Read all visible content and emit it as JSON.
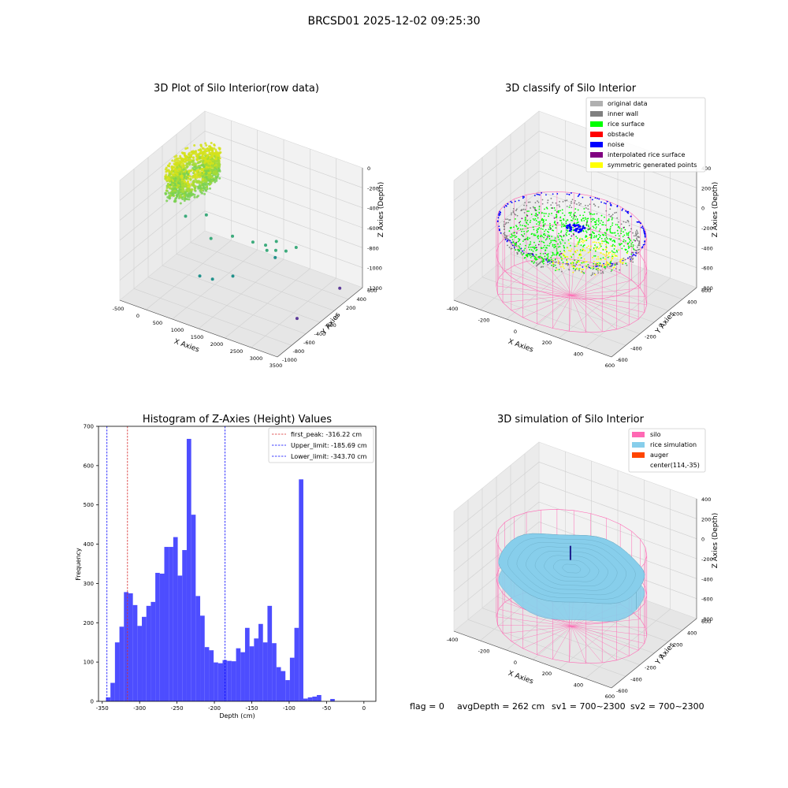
{
  "suptitle": "BRCSD01 2025-12-02 09:25:30",
  "footer": {
    "flag": "flag = 0",
    "avg_depth": "avgDepth = 262 cm",
    "sv1": "sv1 = 700~2300",
    "sv2": "sv2 = 700~2300"
  },
  "colors": {
    "bar": "#4d4dff",
    "first_peak": "#d62728",
    "limits": "#0000ff",
    "silo": "#ff69b4",
    "rice_sim": "#87ceeb",
    "auger": "#ff4500",
    "original": "#b0b0b0",
    "inner_wall": "#808080",
    "rice_surface": "#00ff00",
    "obstacle": "#ff0000",
    "noise": "#0000ff",
    "interp": "#800080",
    "symmetric": "#ffff00"
  },
  "chart_data": [
    {
      "type": "scatter",
      "title": "3D Plot of Silo Interior(row data)",
      "xlabel": "X Axies",
      "ylabel": "Y Axies",
      "zlabel": "Z Axies (Depth)",
      "x_ticks": [
        "-500",
        "0",
        "500",
        "1000",
        "1500",
        "2000",
        "2500",
        "3000",
        "3500"
      ],
      "y_ticks": [
        "-1000",
        "-800",
        "-600",
        "-400",
        "-200",
        "0",
        "200",
        "400",
        "600"
      ],
      "z_ticks": [
        "-1200",
        "-1000",
        "-800",
        "-600",
        "-400",
        "-200",
        "0"
      ],
      "xlim": [
        -600,
        3500
      ],
      "ylim": [
        -1000,
        700
      ],
      "zlim": [
        -1250,
        100
      ],
      "cluster": {
        "x_range": [
          -450,
          450
        ],
        "y_range": [
          -450,
          450
        ],
        "z_range": [
          -350,
          -30
        ]
      },
      "outliers": [
        {
          "x": 200,
          "y": -300,
          "z": -500
        },
        {
          "x": 350,
          "y": 0,
          "z": -600
        },
        {
          "x": 600,
          "y": -100,
          "z": -780
        },
        {
          "x": 900,
          "y": 100,
          "z": -800
        },
        {
          "x": 1300,
          "y": 200,
          "z": -850
        },
        {
          "x": 1500,
          "y": 300,
          "z": -900
        },
        {
          "x": 1600,
          "y": 250,
          "z": -920
        },
        {
          "x": 1650,
          "y": 400,
          "z": -880
        },
        {
          "x": 1700,
          "y": 350,
          "z": -950
        },
        {
          "x": 1750,
          "y": 300,
          "z": -1000
        },
        {
          "x": 1900,
          "y": 400,
          "z": -950
        },
        {
          "x": 2100,
          "y": 450,
          "z": -900
        },
        {
          "x": 700,
          "y": -400,
          "z": -1050
        },
        {
          "x": 900,
          "y": -300,
          "z": -1100
        },
        {
          "x": 1300,
          "y": -200,
          "z": -1050
        },
        {
          "x": 3300,
          "y": 400,
          "z": -1150
        },
        {
          "x": 3100,
          "y": -300,
          "z": -1200
        }
      ]
    },
    {
      "type": "scatter",
      "title": "3D classify of Silo Interior",
      "xlabel": "X Axies",
      "ylabel": "Y Axies",
      "zlabel": "Z Axies (Depth)",
      "x_ticks": [
        "-400",
        "-200",
        "0",
        "200",
        "400",
        "600"
      ],
      "y_ticks": [
        "-600",
        "-400",
        "-200",
        "0",
        "200",
        "400",
        "600"
      ],
      "z_ticks": [
        "-800",
        "-600",
        "-400",
        "-200",
        "0",
        "200",
        "400"
      ],
      "xlim": [
        -500,
        750
      ],
      "ylim": [
        -650,
        650
      ],
      "zlim": [
        -900,
        450
      ],
      "legend": [
        "original data",
        "inner wall",
        "rice surface",
        "obstacle",
        "noise",
        "interpolated rice surface",
        "symmetric generated points"
      ],
      "legend_position": "top-right",
      "silo_radius": 530,
      "silo_center": [
        114,
        -35
      ],
      "silo_z_range": [
        -900,
        -150
      ]
    },
    {
      "type": "bar",
      "title": "Histogram of Z-Axies (Height) Values",
      "xlabel": "Depth (cm)",
      "ylabel": "Frequency",
      "xlim": [
        -355,
        16
      ],
      "ylim": [
        0,
        700
      ],
      "x_ticks": [
        -350,
        -300,
        -250,
        -200,
        -150,
        -100,
        -50,
        0
      ],
      "y_ticks": [
        0,
        100,
        200,
        300,
        400,
        500,
        600,
        700
      ],
      "bin_start": -351,
      "bin_width": 6,
      "values": [
        0,
        10,
        47,
        150,
        190,
        278,
        275,
        245,
        192,
        215,
        243,
        253,
        327,
        325,
        393,
        393,
        418,
        320,
        385,
        668,
        475,
        268,
        218,
        138,
        130,
        99,
        97,
        105,
        103,
        102,
        135,
        125,
        187,
        140,
        160,
        197,
        150,
        243,
        148,
        87,
        77,
        54,
        111,
        187,
        565,
        7,
        10,
        12,
        16,
        0,
        0,
        6,
        0
      ],
      "vlines": [
        {
          "label": "first_peak: -316.22 cm",
          "x": -316.22,
          "color": "#d62728"
        },
        {
          "label": "Upper_limit: -185.69 cm",
          "x": -185.69,
          "color": "#0000ff"
        },
        {
          "label": "Lower_limit: -343.70 cm",
          "x": -343.7,
          "color": "#0000ff"
        }
      ],
      "legend_position": "top-right"
    },
    {
      "type": "area",
      "title": "3D simulation of Silo Interior",
      "xlabel": "X Axies",
      "ylabel": "Y Axies",
      "zlabel": "Z Axies (Depth)",
      "x_ticks": [
        "-400",
        "-200",
        "0",
        "200",
        "400",
        "600"
      ],
      "y_ticks": [
        "-600",
        "-400",
        "-200",
        "0",
        "200",
        "400",
        "600"
      ],
      "z_ticks": [
        "-800",
        "-600",
        "-400",
        "-200",
        "0",
        "200",
        "400"
      ],
      "xlim": [
        -500,
        750
      ],
      "ylim": [
        -650,
        650
      ],
      "zlim": [
        -900,
        450
      ],
      "legend": [
        "silo",
        "rice simulation",
        "auger",
        "center(114,-35)"
      ],
      "legend_position": "top-right",
      "silo_radius": 530,
      "silo_center": [
        114,
        -35
      ],
      "silo_z_range": [
        -900,
        0
      ],
      "rice_surface_z": -250
    }
  ]
}
